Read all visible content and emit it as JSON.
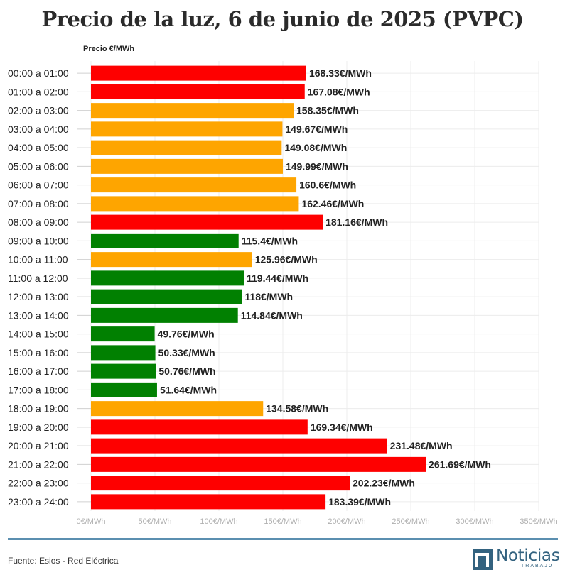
{
  "chart_data": {
    "type": "bar",
    "orientation": "horizontal",
    "title": "Precio de la luz, 6 de junio de 2025 (PVPC)",
    "ylabel": "Precio €/MWh",
    "xlim": [
      0,
      350
    ],
    "xticks": [
      0,
      50,
      100,
      150,
      200,
      250,
      300,
      350
    ],
    "tick_suffix": "€/MWh",
    "value_suffix": "€/MWh",
    "grid": true,
    "categories": [
      "00:00 a 01:00",
      "01:00 a 02:00",
      "02:00 a 03:00",
      "03:00 a 04:00",
      "04:00 a 05:00",
      "05:00 a 06:00",
      "06:00 a 07:00",
      "07:00 a 08:00",
      "08:00 a 09:00",
      "09:00 a 10:00",
      "10:00 a 11:00",
      "11:00 a 12:00",
      "12:00 a 13:00",
      "13:00 a 14:00",
      "14:00 a 15:00",
      "15:00 a 16:00",
      "16:00 a 17:00",
      "17:00 a 18:00",
      "18:00 a 19:00",
      "19:00 a 20:00",
      "20:00 a 21:00",
      "21:00 a 22:00",
      "22:00 a 23:00",
      "23:00 a 24:00"
    ],
    "values": [
      168.33,
      167.08,
      158.35,
      149.67,
      149.08,
      149.99,
      160.6,
      162.46,
      181.16,
      115.4,
      125.96,
      119.44,
      118,
      114.84,
      49.76,
      50.33,
      50.76,
      51.64,
      134.58,
      169.34,
      231.48,
      261.69,
      202.23,
      183.39
    ],
    "value_labels": [
      "168.33€/MWh",
      "167.08€/MWh",
      "158.35€/MWh",
      "149.67€/MWh",
      "149.08€/MWh",
      "149.99€/MWh",
      "160.6€/MWh",
      "162.46€/MWh",
      "181.16€/MWh",
      "115.4€/MWh",
      "125.96€/MWh",
      "119.44€/MWh",
      "118€/MWh",
      "114.84€/MWh",
      "49.76€/MWh",
      "50.33€/MWh",
      "50.76€/MWh",
      "51.64€/MWh",
      "134.58€/MWh",
      "169.34€/MWh",
      "231.48€/MWh",
      "261.69€/MWh",
      "202.23€/MWh",
      "183.39€/MWh"
    ],
    "bar_colors": [
      "red",
      "red",
      "orange",
      "orange",
      "orange",
      "orange",
      "orange",
      "orange",
      "red",
      "green",
      "orange",
      "green",
      "green",
      "green",
      "green",
      "green",
      "green",
      "green",
      "orange",
      "red",
      "red",
      "red",
      "red",
      "red"
    ],
    "palette": {
      "red": "#fe0000",
      "orange": "#fea500",
      "green": "#018001"
    }
  },
  "footer": {
    "source": "Fuente: Esios - Red Eléctrica",
    "logo_name": "Noticias",
    "logo_sub": "TRABAJO",
    "logo_color": "#33627f",
    "divider_color": "#5b8fb0"
  }
}
